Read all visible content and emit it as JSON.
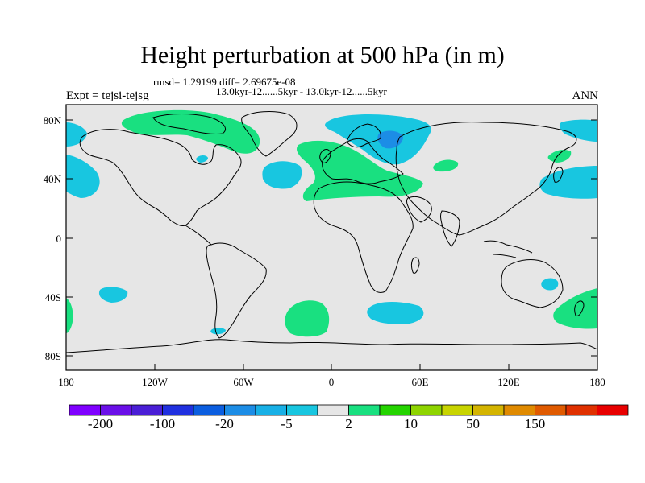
{
  "title": "Height perturbation at 500 hPa (in m)",
  "stats_line": "rmsd= 1.29199 diff= 2.69675e-08",
  "period_line": "13.0kyr-12......5kyr - 13.0kyr-12......5kyr",
  "expt_label": "Expt = tejsi-tejsg",
  "season_label": "ANN",
  "lat_ticks": [
    "80N",
    "40N",
    "0",
    "40S",
    "80S"
  ],
  "lon_ticks": [
    "180",
    "120W",
    "60W",
    "0",
    "60E",
    "120E",
    "180"
  ],
  "colorbar": {
    "colors": [
      "#7f00ff",
      "#6a0fe8",
      "#4a1ed6",
      "#2030e0",
      "#0b5ee0",
      "#1c8de6",
      "#18b0e6",
      "#18c6e0",
      "#e6e6e6",
      "#19e080",
      "#24d400",
      "#8ed400",
      "#c8d400",
      "#d4b400",
      "#e08a00",
      "#e05a00",
      "#e03000",
      "#e80000"
    ],
    "labels": [
      "-200",
      "-100",
      "-20",
      "-5",
      "2",
      "10",
      "50",
      "150"
    ]
  },
  "colors": {
    "ocean_land_background": "#e6e6e6",
    "positive_anomaly": "#19e080",
    "negative_anomaly": "#18c6e0",
    "strong_negative": "#1c8de6"
  }
}
